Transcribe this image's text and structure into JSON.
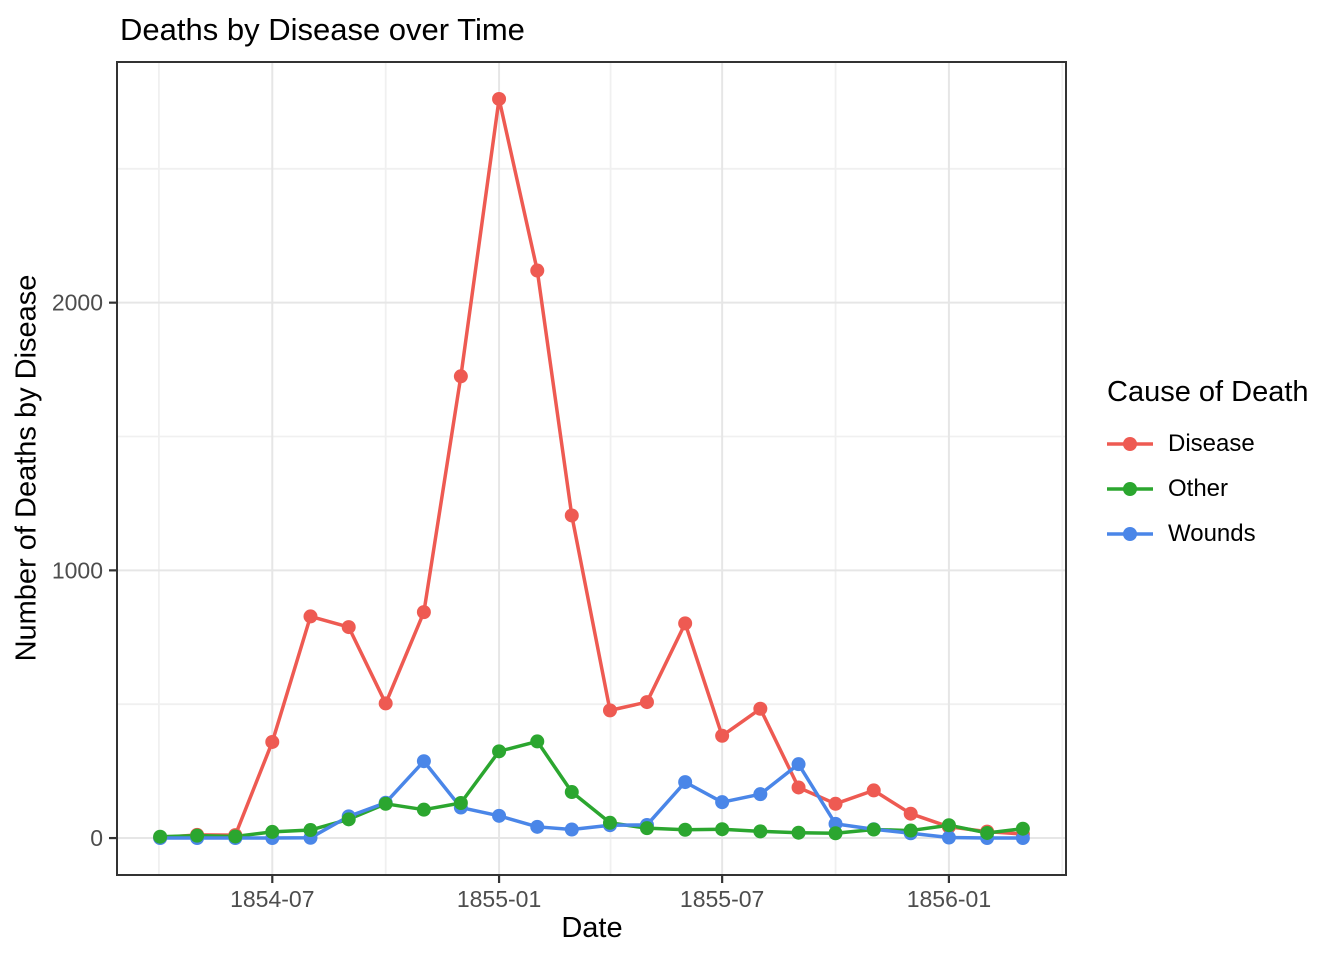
{
  "chart_data": {
    "type": "line",
    "title": "Deaths by Disease over Time",
    "xlabel": "Date",
    "ylabel": "Number of Deaths by Disease",
    "legend_title": "Cause of Death",
    "legend_position": "right",
    "grid": true,
    "x": [
      "1854-04",
      "1854-05",
      "1854-06",
      "1854-07",
      "1854-08",
      "1854-09",
      "1854-10",
      "1854-11",
      "1854-12",
      "1855-01",
      "1855-02",
      "1855-03",
      "1855-04",
      "1855-05",
      "1855-06",
      "1855-07",
      "1855-08",
      "1855-09",
      "1855-10",
      "1855-11",
      "1855-12",
      "1856-01",
      "1856-02",
      "1856-03"
    ],
    "series": [
      {
        "name": "Disease",
        "color": "#EE5A52",
        "values": [
          1,
          12,
          11,
          359,
          828,
          788,
          503,
          844,
          1725,
          2761,
          2120,
          1205,
          477,
          508,
          802,
          382,
          483,
          189,
          128,
          178,
          91,
          42,
          24,
          15
        ]
      },
      {
        "name": "Other",
        "color": "#2BA62F",
        "values": [
          5,
          9,
          6,
          23,
          30,
          70,
          128,
          106,
          131,
          324,
          361,
          172,
          57,
          37,
          31,
          33,
          25,
          20,
          18,
          32,
          28,
          48,
          19,
          35
        ]
      },
      {
        "name": "Wounds",
        "color": "#4A86E8",
        "values": [
          0,
          0,
          0,
          0,
          1,
          81,
          132,
          287,
          114,
          83,
          42,
          32,
          48,
          49,
          209,
          134,
          164,
          276,
          53,
          33,
          18,
          2,
          0,
          0
        ]
      }
    ],
    "point_draw_order": [
      "Disease",
      "Wounds",
      "Other"
    ],
    "x_tick_labels": [
      "1854-07",
      "1855-01",
      "1855-07",
      "1856-01"
    ],
    "y_tick_labels": [
      "0",
      "1000",
      "2000"
    ],
    "y_major_breaks": [
      0,
      1000,
      2000
    ],
    "y_minor_breaks": [
      500,
      1500,
      2500
    ],
    "ylim": [
      -138,
      2899
    ],
    "colors": {
      "panel_border": "#333333",
      "tick_mark": "#333333",
      "axis_text": "#4D4D4D",
      "grid_major": "#E6E6E6",
      "grid_minor": "#F0F0F0",
      "background": "#FFFFFF"
    }
  }
}
